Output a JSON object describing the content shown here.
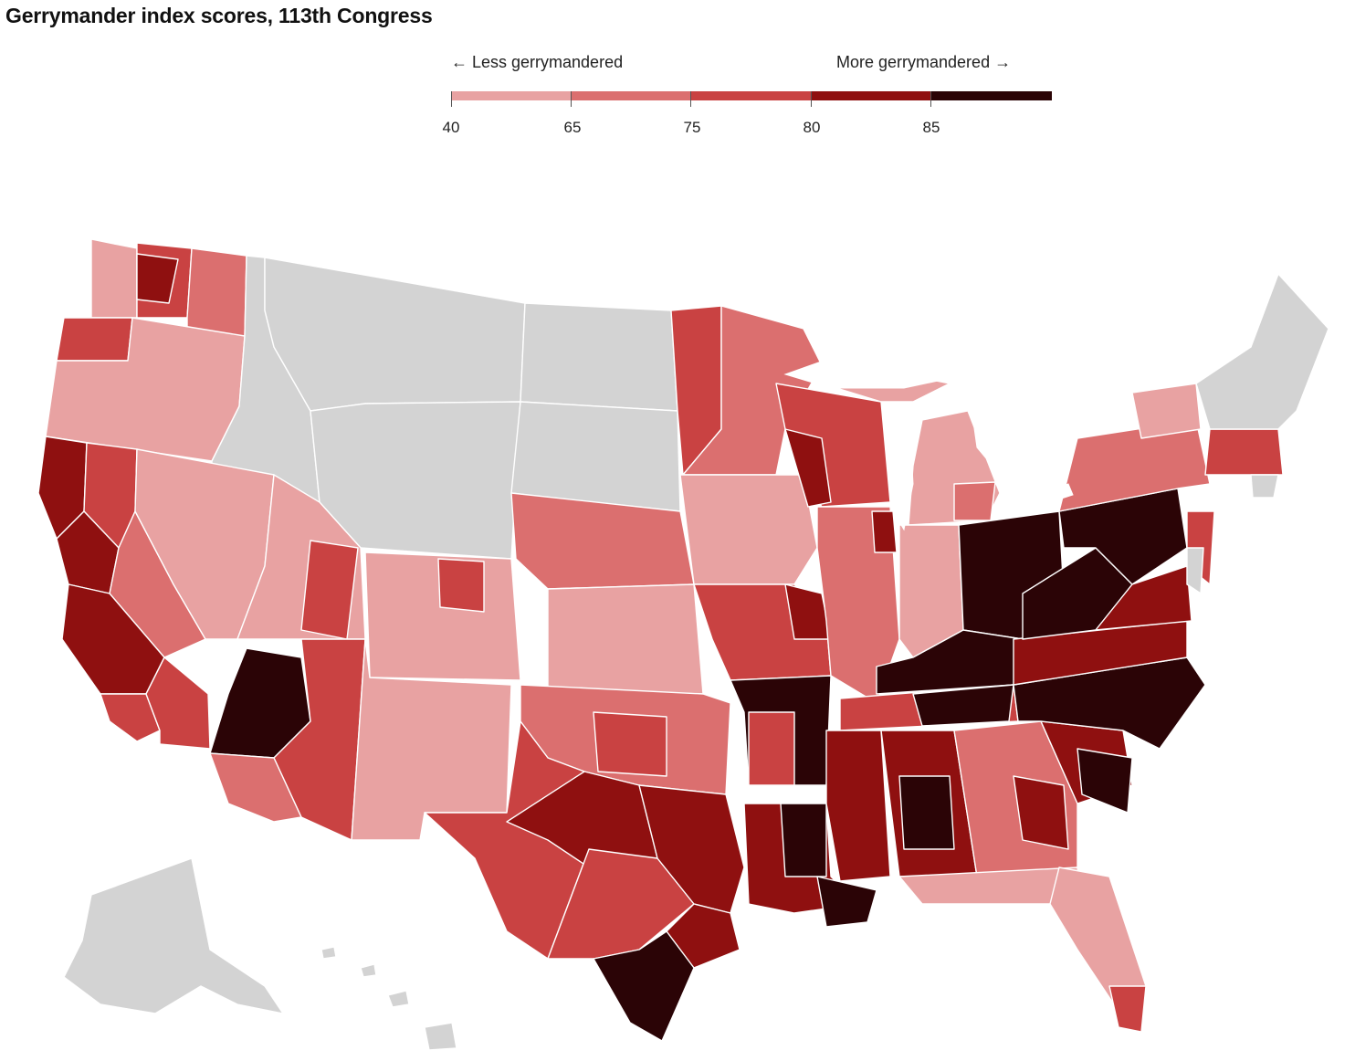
{
  "title": "Gerrymander index scores, 113th Congress",
  "legend": {
    "left_caption": "← Less gerrymandered",
    "right_caption": "More gerrymandered →",
    "ticks": [
      "40",
      "65",
      "75",
      "80",
      "85"
    ],
    "colors": [
      "#e8a2a2",
      "#db6f6f",
      "#c94242",
      "#8f1010",
      "#2b0406"
    ],
    "no_data_color": "#d3d3d3"
  }
}
